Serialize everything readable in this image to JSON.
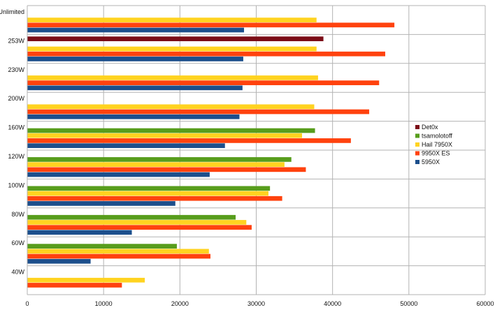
{
  "chart_data": {
    "type": "bar",
    "orientation": "horizontal",
    "title": "",
    "xlabel": "",
    "ylabel": "",
    "xlim": [
      0,
      60000
    ],
    "x_ticks": [
      "0",
      "10000",
      "20000",
      "30000",
      "40000",
      "50000",
      "60000"
    ],
    "grid": true,
    "legend_position": "right",
    "categories": [
      "40W",
      "60W",
      "80W",
      "100W",
      "120W",
      "160W",
      "200W",
      "230W",
      "253W",
      "Unlimited"
    ],
    "series": [
      {
        "name": "Det0x",
        "color": "#7b0c16",
        "values": [
          null,
          null,
          null,
          null,
          null,
          null,
          null,
          null,
          38800,
          null
        ]
      },
      {
        "name": "tsamolotoff",
        "color": "#579d1c",
        "values": [
          null,
          19600,
          27300,
          31800,
          34600,
          37700,
          null,
          null,
          null,
          null
        ]
      },
      {
        "name": "Hail 7950X",
        "color": "#ffd320",
        "values": [
          15400,
          23800,
          28700,
          31600,
          33700,
          36000,
          37600,
          38100,
          37900,
          37900
        ]
      },
      {
        "name": "9950X ES",
        "color": "#ff420e",
        "values": [
          12400,
          24000,
          29400,
          33400,
          36500,
          42400,
          44800,
          46100,
          46900,
          48100
        ]
      },
      {
        "name": "5950X",
        "color": "#1c4f8c",
        "values": [
          null,
          8300,
          13700,
          19400,
          23900,
          25900,
          27800,
          28200,
          28300,
          28400
        ]
      }
    ]
  }
}
